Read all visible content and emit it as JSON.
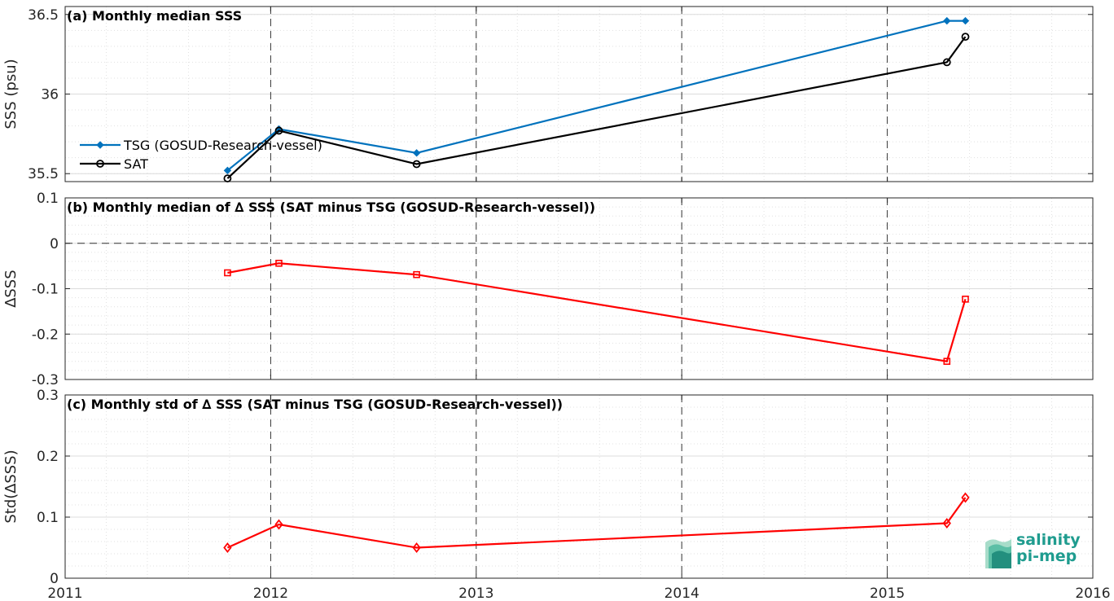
{
  "chart_data": [
    {
      "type": "line",
      "panel_title": "(a) Monthly median SSS",
      "ylabel": "SSS (psu)",
      "xlim": [
        2011,
        2016
      ],
      "ylim": [
        35.45,
        36.55
      ],
      "yticks": [
        35.5,
        36,
        36.5
      ],
      "ytick_labels": [
        "35.5",
        "36",
        "36.5"
      ],
      "legend_position": "left",
      "series": [
        {
          "name": "TSG (GOSUD-Research-vessel)",
          "color": "#0072bd",
          "marker": "diamond-filled",
          "x": [
            2011.79,
            2012.04,
            2012.71,
            2015.29,
            2015.38
          ],
          "y": [
            35.52,
            35.78,
            35.63,
            36.46,
            36.46
          ]
        },
        {
          "name": "SAT",
          "color": "#000000",
          "marker": "circle-open",
          "x": [
            2011.79,
            2012.04,
            2012.71,
            2015.29,
            2015.38
          ],
          "y": [
            35.47,
            35.77,
            35.56,
            36.2,
            36.36
          ]
        }
      ]
    },
    {
      "type": "line",
      "panel_title": "(b) Monthly median of ∆ SSS (SAT minus TSG (GOSUD-Research-vessel))",
      "ylabel": "∆SSS",
      "xlim": [
        2011,
        2016
      ],
      "ylim": [
        -0.3,
        0.1
      ],
      "yticks": [
        -0.3,
        -0.2,
        -0.1,
        0,
        0.1
      ],
      "ytick_labels": [
        "-0.3",
        "-0.2",
        "-0.1",
        "0",
        "0.1"
      ],
      "zero_line": true,
      "series": [
        {
          "color": "#ff0000",
          "marker": "square-open",
          "x": [
            2011.79,
            2012.04,
            2012.71,
            2015.29,
            2015.38
          ],
          "y": [
            -0.065,
            -0.044,
            -0.069,
            -0.26,
            -0.123
          ]
        }
      ]
    },
    {
      "type": "line",
      "panel_title": "(c) Monthly std of ∆ SSS (SAT minus TSG (GOSUD-Research-vessel))",
      "ylabel": "Std(∆SSS)",
      "xlim": [
        2011,
        2016
      ],
      "ylim": [
        0,
        0.3
      ],
      "yticks": [
        0,
        0.1,
        0.2,
        0.3
      ],
      "ytick_labels": [
        "0",
        "0.1",
        "0.2",
        "0.3"
      ],
      "xticks": [
        2011,
        2012,
        2013,
        2014,
        2015,
        2016
      ],
      "xtick_labels": [
        "2011",
        "2012",
        "2013",
        "2014",
        "2015",
        "2016"
      ],
      "series": [
        {
          "color": "#ff0000",
          "marker": "diamond-open",
          "x": [
            2011.79,
            2012.04,
            2012.71,
            2015.29,
            2015.38
          ],
          "y": [
            0.05,
            0.088,
            0.05,
            0.09,
            0.132
          ]
        }
      ]
    }
  ],
  "logo": {
    "line1": "salinity",
    "line2": "pi-mep",
    "color": "#1f9c8f"
  }
}
